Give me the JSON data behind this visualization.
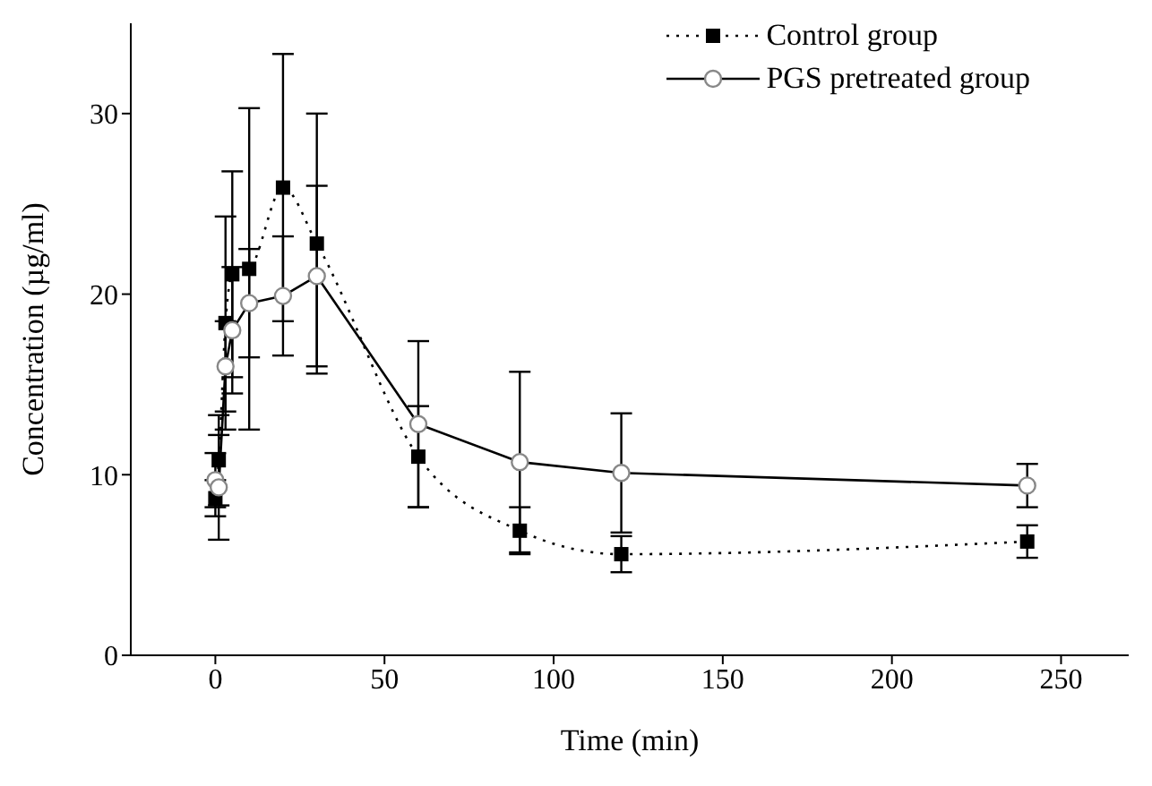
{
  "chart_data": {
    "type": "line",
    "xlabel": "Time (min)",
    "ylabel": "Concentration (µg/ml)",
    "x": [
      0,
      1,
      3,
      5,
      10,
      20,
      30,
      60,
      90,
      120,
      240
    ],
    "xlim": [
      -25,
      270
    ],
    "xticks": [
      0,
      50,
      100,
      150,
      200,
      250
    ],
    "ylim": [
      0,
      35
    ],
    "yticks": [
      0,
      10,
      20,
      30
    ],
    "legend": "top right",
    "series": [
      {
        "name": "Control group",
        "color": "#000000",
        "marker": "square",
        "line_style": "dotted",
        "values": [
          8.7,
          10.8,
          18.4,
          21.1,
          21.4,
          25.9,
          22.8,
          11.0,
          6.9,
          5.6,
          6.3
        ],
        "errors": [
          1.0,
          2.5,
          5.9,
          5.7,
          8.9,
          7.4,
          7.2,
          2.8,
          1.3,
          1.0,
          0.9
        ]
      },
      {
        "name": "PGS pretreated group",
        "color": "#000000",
        "marker": "circle",
        "line_style": "solid",
        "values": [
          9.7,
          9.3,
          16.0,
          18.0,
          19.5,
          19.9,
          21.0,
          12.8,
          10.7,
          10.1,
          9.4
        ],
        "errors": [
          1.5,
          2.9,
          2.5,
          3.5,
          3.0,
          3.3,
          5.0,
          4.6,
          5.0,
          3.3,
          1.2
        ]
      }
    ]
  }
}
